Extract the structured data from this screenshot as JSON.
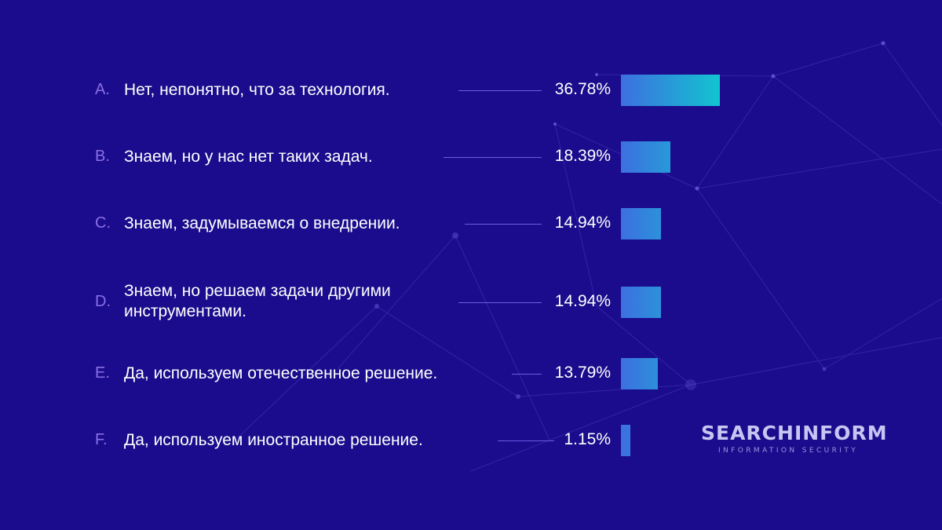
{
  "chart_data": {
    "type": "bar",
    "orientation": "horizontal",
    "letters": [
      "A.",
      "B.",
      "C.",
      "D.",
      "E.",
      "F."
    ],
    "categories": [
      "Нет, непонятно, что за технология.",
      "Знаем, но у нас нет таких задач.",
      "Знаем, задумываемся о внедрении.",
      "Знаем, но решаем задачи другими\nинструментами.",
      "Да, используем отечественное решение.",
      "Да, используем иностранное решение."
    ],
    "values": [
      36.78,
      18.39,
      14.94,
      14.94,
      13.79,
      1.15
    ],
    "value_labels": [
      "36.78%",
      "18.39%",
      "14.94%",
      "14.94%",
      "13.79%",
      "1.15%"
    ],
    "colors": {
      "background": "#1a0c8c",
      "bar_start": "#3d6fe0",
      "bar_end": "#12c4d0",
      "letter": "#8b6fe6",
      "leader": "#6e5be6"
    }
  },
  "logo": {
    "name": "SEARCHINFORM",
    "tagline": "INFORMATION SECURITY"
  }
}
